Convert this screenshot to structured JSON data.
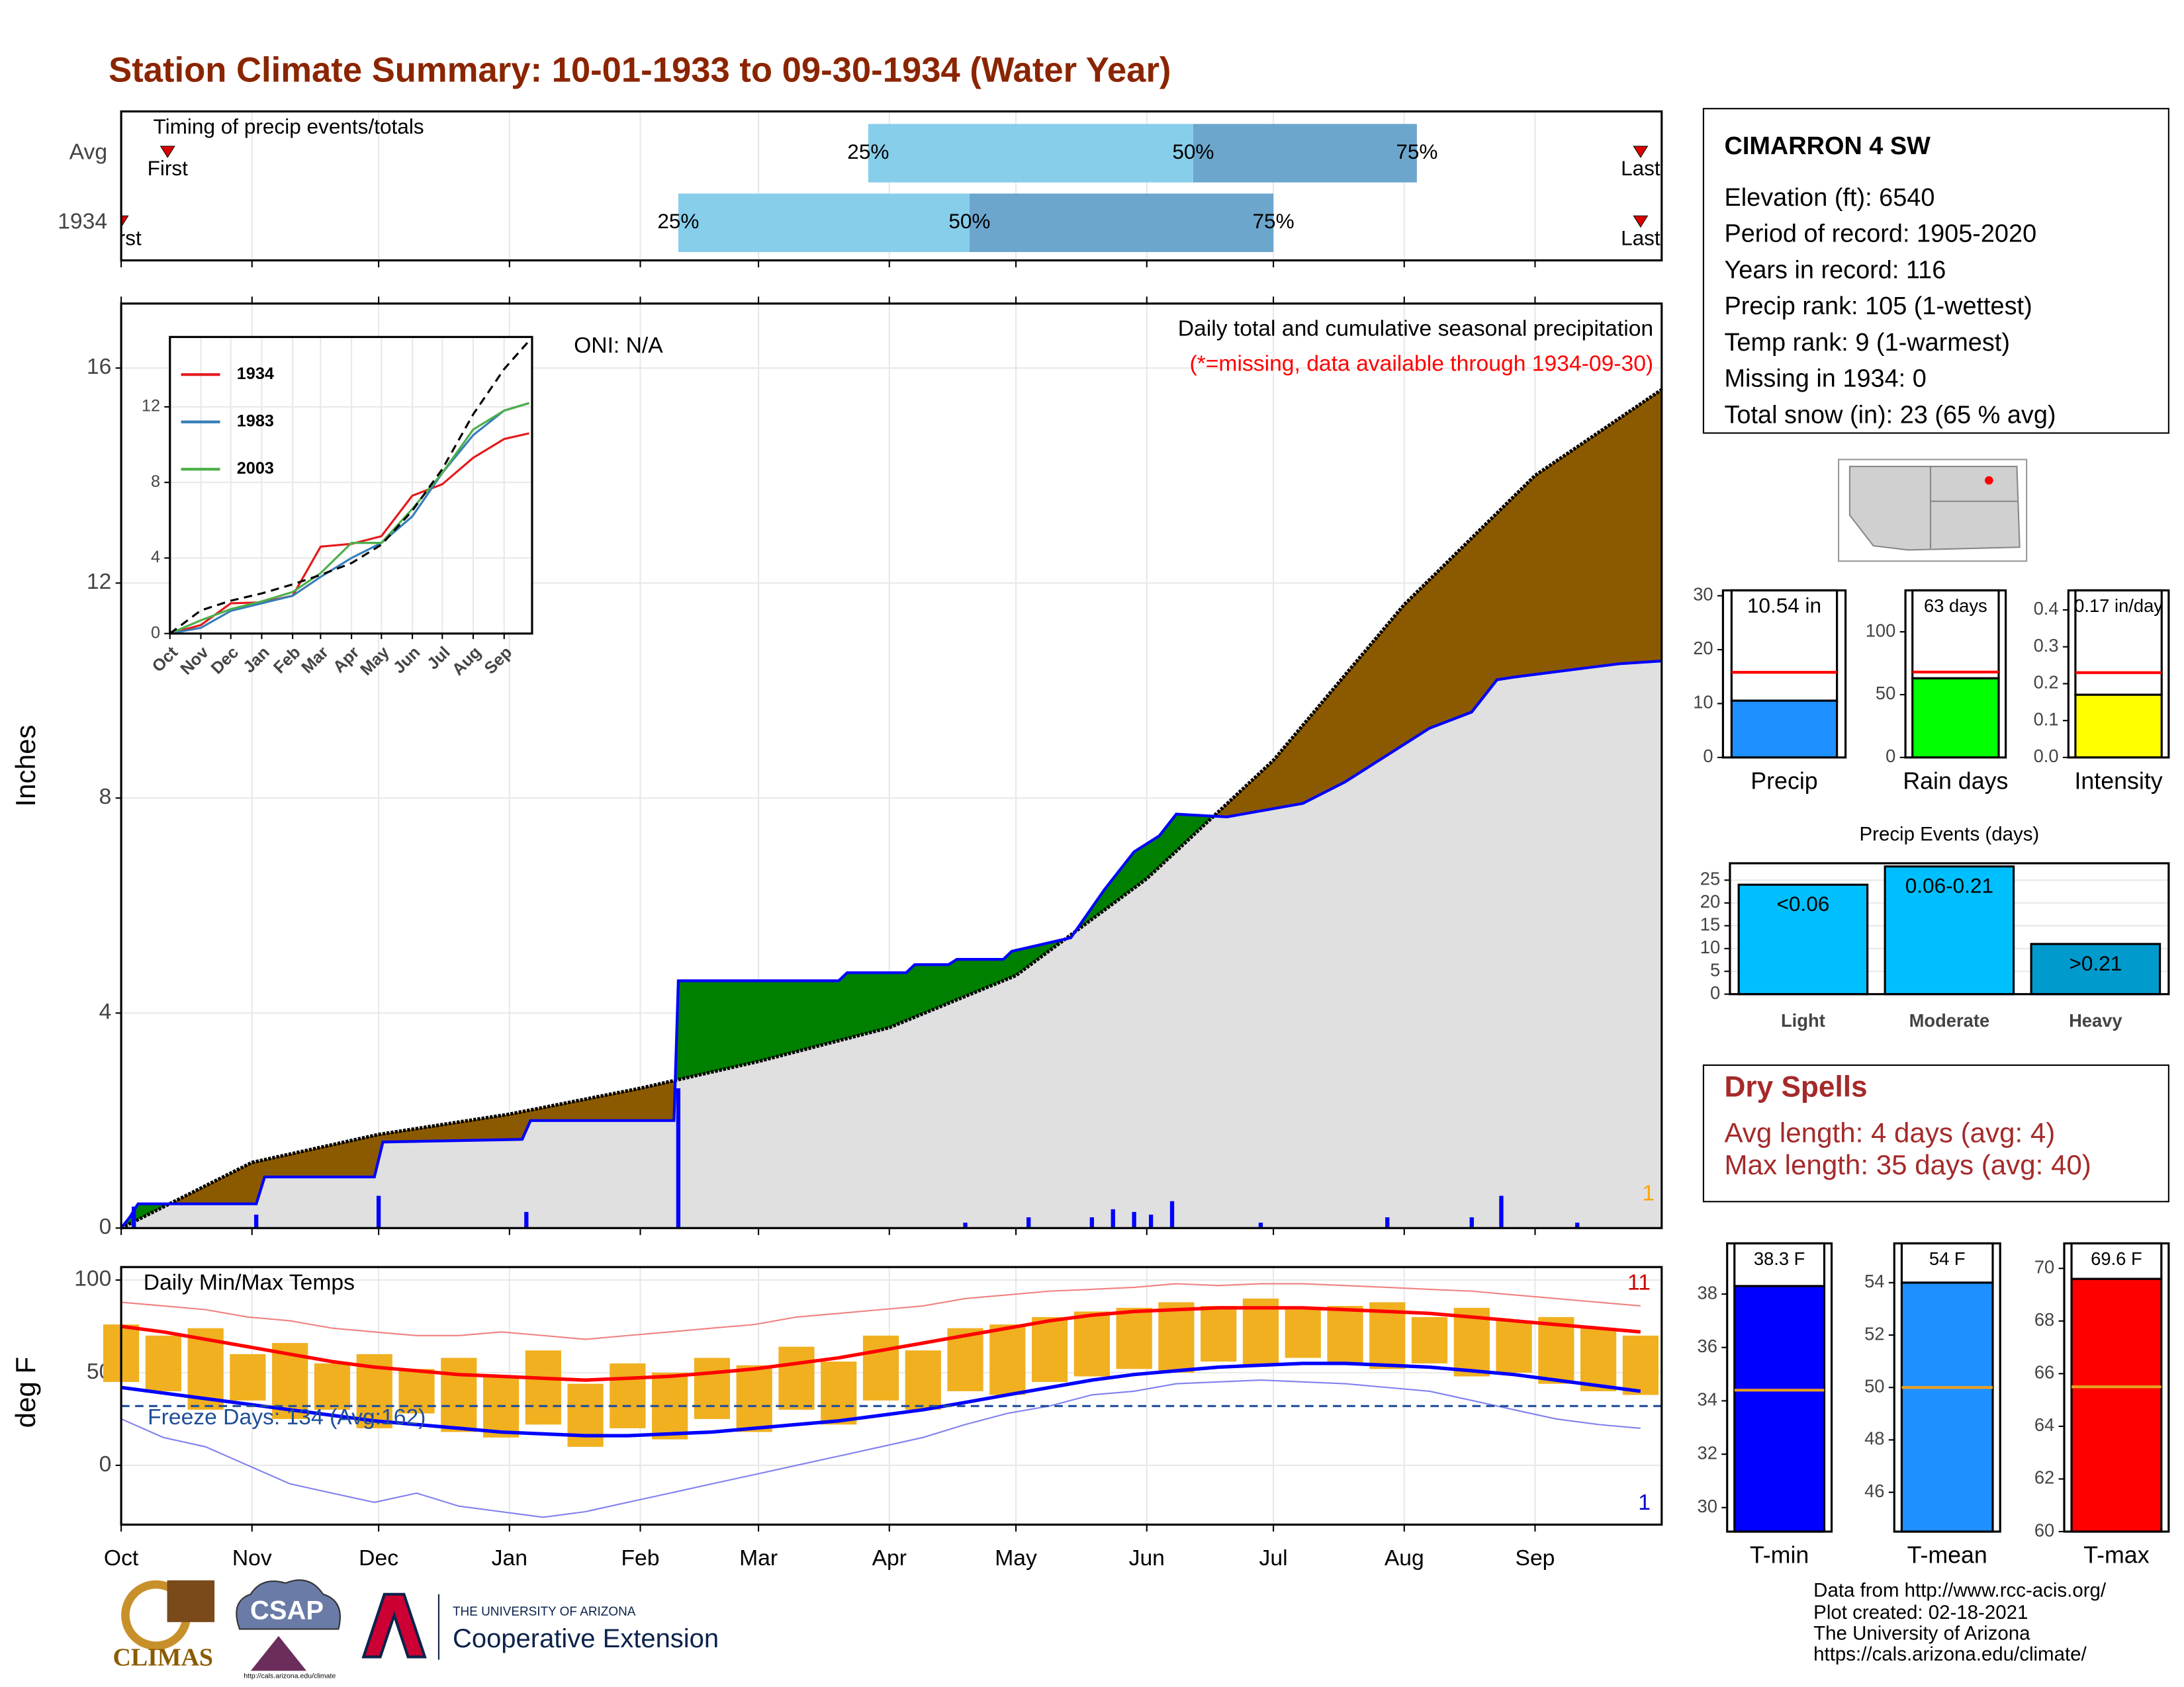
{
  "title": "Station Climate Summary: 10-01-1933 to 09-30-1934 (Water Year)",
  "station": {
    "name": "CIMARRON 4 SW",
    "lines": [
      "Elevation (ft): 6540",
      "Period of record: 1905-2020",
      "Years in record: 116",
      "Precip rank: 105 (1-wettest)",
      "Temp rank: 9 (1-warmest)",
      "Missing in 1934: 0",
      "Total snow (in): 23 (65 % avg)"
    ]
  },
  "dry_spells": {
    "title": "Dry Spells",
    "lines": [
      "Avg length: 4 days (avg: 4)",
      "Max length: 35 days (avg: 40)"
    ]
  },
  "footer": [
    "Data from http://www.rcc-acis.org/",
    "Plot created: 02-18-2021",
    "The University of Arizona",
    "https://cals.arizona.edu/climate/"
  ],
  "logos": {
    "climas": "CLIMAS",
    "csap": "CSAP",
    "csap_url": "http://cals.arizona.edu/climate",
    "university": "THE UNIVERSITY OF ARIZONA",
    "extension": "Cooperative Extension"
  },
  "chart_data": [
    {
      "type": "timeline",
      "title": "Timing of precip events/totals",
      "xlim": [
        0,
        365
      ],
      "xticks": [
        0,
        31,
        61,
        92,
        123,
        151,
        182,
        212,
        243,
        273,
        304,
        335
      ],
      "grid": true,
      "colors": [
        "#87ceeb",
        "#6ca6cd"
      ],
      "marker_color": "#dd0000",
      "rows": [
        {
          "name": "Avg",
          "first": 11,
          "last": 360,
          "first_label": "First",
          "last_label": "Last",
          "quartiles": [
            177,
            254,
            307
          ],
          "quartile_labels": [
            "25%",
            "50%",
            "75%"
          ]
        },
        {
          "name": "1934",
          "first": 0,
          "last": 360,
          "first_label": "First",
          "last_label": "Last",
          "quartiles": [
            132,
            201,
            273
          ],
          "quartile_labels": [
            "25%",
            "50%",
            "75%"
          ]
        }
      ]
    },
    {
      "type": "area",
      "title": "Daily total and cumulative seasonal precipitation",
      "subtitle": "(*=missing, data available through 1934-09-30)",
      "ylabel": "Inches",
      "annotation": "ONI: N/A",
      "corner_label": "1",
      "xlim": [
        0,
        365
      ],
      "xticks": [
        0,
        31,
        61,
        92,
        123,
        151,
        182,
        212,
        243,
        273,
        304,
        335
      ],
      "ylim": [
        0,
        17.2
      ],
      "yticks": [
        0,
        4,
        8,
        12,
        16
      ],
      "grid": true,
      "colors": {
        "above": "#008000",
        "below": "#8b5a00",
        "base": "#e0e0e0",
        "average_line": "#000000",
        "year_line": "#0000ff",
        "daily": "#0000ff",
        "corner": "#ffa500",
        "subtitle": "#ff0000"
      },
      "average": {
        "x": [
          0,
          31,
          61,
          92,
          123,
          151,
          182,
          212,
          243,
          273,
          304,
          335,
          365
        ],
        "values": [
          0,
          1.22,
          1.74,
          2.12,
          2.6,
          3.1,
          3.73,
          4.7,
          6.5,
          8.7,
          11.6,
          14.0,
          15.6
        ]
      },
      "year": {
        "x": [
          0,
          2,
          4,
          32,
          34,
          60,
          62,
          95,
          97,
          131,
          132,
          170,
          172,
          186,
          188,
          196,
          198,
          209,
          211,
          225,
          233,
          240,
          246,
          250,
          262,
          280,
          290,
          300,
          310,
          320,
          326,
          330,
          345,
          355,
          365
        ],
        "values": [
          0,
          0.2,
          0.45,
          0.45,
          0.95,
          0.95,
          1.6,
          1.65,
          2.0,
          2.0,
          4.6,
          4.6,
          4.75,
          4.75,
          4.9,
          4.9,
          5.0,
          5.0,
          5.15,
          5.4,
          6.3,
          7.0,
          7.3,
          7.7,
          7.65,
          7.9,
          8.3,
          8.8,
          9.3,
          9.6,
          10.2,
          10.25,
          10.4,
          10.5,
          10.55
        ]
      },
      "daily": {
        "x": [
          3,
          32,
          61,
          96,
          132,
          200,
          215,
          230,
          235,
          240,
          244,
          249,
          270,
          300,
          320,
          327,
          345
        ],
        "values": [
          0.4,
          0.25,
          0.6,
          0.3,
          2.6,
          0.1,
          0.2,
          0.2,
          0.35,
          0.3,
          0.25,
          0.5,
          0.1,
          0.2,
          0.2,
          0.6,
          0.1
        ]
      }
    },
    {
      "type": "line",
      "xlim": [
        0,
        363
      ],
      "ylim": [
        0,
        15.7
      ],
      "yticks": [
        0,
        4,
        8,
        12
      ],
      "xticks": [
        {
          "value": 0,
          "label": "Oct"
        },
        {
          "value": 31,
          "label": "Nov"
        },
        {
          "value": 61,
          "label": "Dec"
        },
        {
          "value": 92,
          "label": "Jan"
        },
        {
          "value": 123,
          "label": "Feb"
        },
        {
          "value": 151,
          "label": "Mar"
        },
        {
          "value": 182,
          "label": "Apr"
        },
        {
          "value": 212,
          "label": "May"
        },
        {
          "value": 243,
          "label": "Jun"
        },
        {
          "value": 273,
          "label": "Jul"
        },
        {
          "value": 304,
          "label": "Aug"
        },
        {
          "value": 335,
          "label": "Sep"
        }
      ],
      "grid": true,
      "x": [
        0,
        31,
        61,
        92,
        123,
        151,
        182,
        212,
        243,
        273,
        304,
        335,
        360
      ],
      "average": {
        "color": "#000000",
        "values": [
          0,
          1.22,
          1.74,
          2.12,
          2.6,
          3.1,
          3.73,
          4.7,
          6.5,
          8.7,
          11.6,
          14.0,
          15.5
        ]
      },
      "series": [
        {
          "name": "1934",
          "color": "#e41a1c",
          "values": [
            0,
            0.45,
            1.6,
            1.65,
            2.0,
            4.6,
            4.75,
            5.15,
            7.3,
            7.9,
            9.3,
            10.3,
            10.6
          ]
        },
        {
          "name": "1983",
          "color": "#377eb8",
          "values": [
            0,
            0.3,
            1.2,
            1.6,
            2.0,
            3.0,
            4.0,
            4.8,
            6.2,
            8.5,
            10.5,
            11.8,
            12.2
          ]
        },
        {
          "name": "2003",
          "color": "#4daf4a",
          "values": [
            0,
            0.7,
            1.3,
            1.7,
            2.2,
            3.2,
            4.8,
            4.8,
            6.6,
            8.5,
            10.8,
            11.8,
            12.2
          ]
        }
      ]
    },
    {
      "type": "bar",
      "categories": [
        "Precip"
      ],
      "values": [
        10.54
      ],
      "value_labels": [
        "10.54 in"
      ],
      "average": [
        15.8
      ],
      "ylim": [
        0,
        31
      ],
      "yticks": [
        0,
        10,
        20,
        30
      ],
      "color": "#1e90ff",
      "average_color": "#ff0000"
    },
    {
      "type": "bar",
      "categories": [
        "Rain days"
      ],
      "values": [
        63
      ],
      "value_labels": [
        "63 days"
      ],
      "average": [
        68
      ],
      "ylim": [
        0,
        133
      ],
      "yticks": [
        0,
        50,
        100
      ],
      "color": "#00ff00",
      "average_color": "#ff0000"
    },
    {
      "type": "bar",
      "categories": [
        "Intensity"
      ],
      "values": [
        0.17
      ],
      "value_labels": [
        "0.17 in/day"
      ],
      "average": [
        0.23
      ],
      "ylim": [
        0,
        0.453
      ],
      "yticks": [
        {
          "value": 0,
          "label": "0.0"
        },
        0.1,
        0.2,
        0.3,
        0.4
      ],
      "color": "#ffff00",
      "average_color": "#ff0000"
    },
    {
      "type": "events",
      "title": "Precip Events (days)",
      "categories": [
        "Light",
        "Moderate",
        "Heavy"
      ],
      "bin_labels": [
        "<0.06",
        "0.06-0.21",
        ">0.21"
      ],
      "values": [
        24,
        28,
        11
      ],
      "ylim": [
        0,
        28.7
      ],
      "yticks": [
        0,
        5,
        10,
        15,
        20,
        25
      ],
      "grid": true,
      "colors": [
        "#00bfff",
        "#00bfff",
        "#009acd"
      ]
    },
    {
      "type": "range",
      "title": "Daily Min/Max Temps",
      "ylabel": "deg F",
      "annotation": "Freeze Days: 134 (Avg:162)",
      "record_high_count": "11",
      "record_low_count": "1",
      "freeze_line": 32,
      "xlim": [
        0,
        365
      ],
      "ylim": [
        -32,
        107
      ],
      "yticks": [
        0,
        50,
        100
      ],
      "grid": true,
      "xticks": [
        {
          "value": 0,
          "label": "Oct"
        },
        {
          "value": 31,
          "label": "Nov"
        },
        {
          "value": 61,
          "label": "Dec"
        },
        {
          "value": 92,
          "label": "Jan"
        },
        {
          "value": 123,
          "label": "Feb"
        },
        {
          "value": 151,
          "label": "Mar"
        },
        {
          "value": 182,
          "label": "Apr"
        },
        {
          "value": 212,
          "label": "May"
        },
        {
          "value": 243,
          "label": "Jun"
        },
        {
          "value": 273,
          "label": "Jul"
        },
        {
          "value": 304,
          "label": "Aug"
        },
        {
          "value": 335,
          "label": "Sep"
        }
      ],
      "colors": {
        "daily": "#f0b020",
        "avg_high": "#ff0000",
        "avg_low": "#0000ff",
        "record_high": "#f08080",
        "record_low": "#8080f0",
        "freeze": "#1f4e99"
      },
      "x": [
        0,
        10,
        20,
        30,
        40,
        50,
        60,
        70,
        80,
        90,
        100,
        110,
        120,
        130,
        140,
        150,
        160,
        170,
        180,
        190,
        200,
        210,
        220,
        230,
        240,
        250,
        260,
        270,
        280,
        290,
        300,
        310,
        320,
        330,
        340,
        350,
        360
      ],
      "daily_high": [
        76,
        70,
        74,
        60,
        66,
        55,
        60,
        52,
        58,
        48,
        62,
        44,
        55,
        50,
        58,
        54,
        64,
        56,
        70,
        62,
        74,
        76,
        80,
        83,
        85,
        88,
        86,
        90,
        84,
        86,
        88,
        80,
        85,
        78,
        80,
        74,
        70
      ],
      "daily_low": [
        45,
        40,
        30,
        35,
        25,
        30,
        20,
        28,
        18,
        15,
        22,
        10,
        20,
        14,
        25,
        18,
        30,
        22,
        35,
        30,
        40,
        38,
        45,
        48,
        52,
        50,
        56,
        54,
        58,
        55,
        52,
        55,
        48,
        50,
        44,
        40,
        38
      ],
      "avg_high": [
        75,
        72,
        68,
        64,
        60,
        56,
        53,
        51,
        49,
        48,
        47,
        46,
        47,
        48,
        50,
        52,
        55,
        58,
        62,
        66,
        70,
        74,
        78,
        81,
        83,
        84,
        85,
        85,
        85,
        84,
        83,
        82,
        80,
        78,
        76,
        74,
        72
      ],
      "avg_low": [
        42,
        39,
        36,
        33,
        30,
        27,
        24,
        22,
        20,
        18,
        17,
        16,
        16,
        17,
        18,
        20,
        22,
        24,
        27,
        30,
        34,
        38,
        42,
        46,
        49,
        51,
        53,
        54,
        55,
        55,
        54,
        53,
        51,
        49,
        46,
        43,
        40
      ],
      "record_high": [
        88,
        86,
        84,
        80,
        78,
        74,
        72,
        70,
        70,
        72,
        70,
        68,
        70,
        72,
        74,
        76,
        80,
        82,
        84,
        86,
        90,
        92,
        94,
        95,
        96,
        98,
        97,
        98,
        98,
        97,
        96,
        95,
        94,
        92,
        90,
        88,
        86
      ],
      "record_low": [
        25,
        15,
        10,
        0,
        -10,
        -15,
        -20,
        -15,
        -22,
        -25,
        -28,
        -25,
        -20,
        -15,
        -10,
        -5,
        0,
        5,
        10,
        15,
        22,
        28,
        32,
        38,
        40,
        44,
        45,
        46,
        45,
        44,
        42,
        40,
        35,
        30,
        25,
        22,
        20
      ]
    },
    {
      "type": "bar",
      "categories": [
        "T-min"
      ],
      "values": [
        38.3
      ],
      "value_labels": [
        "38.3 F"
      ],
      "average": [
        34.4
      ],
      "ylim": [
        29.1,
        39.9
      ],
      "yticks": [
        30,
        32,
        34,
        36,
        38
      ],
      "color": "#0000ff",
      "average_color": "#e8a020"
    },
    {
      "type": "bar",
      "categories": [
        "T-mean"
      ],
      "values": [
        54
      ],
      "value_labels": [
        "54 F"
      ],
      "average": [
        50
      ],
      "ylim": [
        44.5,
        55.5
      ],
      "yticks": [
        46,
        48,
        50,
        52,
        54
      ],
      "color": "#1e90ff",
      "average_color": "#e8a020"
    },
    {
      "type": "bar",
      "categories": [
        "T-max"
      ],
      "values": [
        69.6
      ],
      "value_labels": [
        "69.6 F"
      ],
      "average": [
        65.5
      ],
      "ylim": [
        60,
        70.95
      ],
      "yticks": [
        60,
        62,
        64,
        66,
        68,
        70
      ],
      "color": "#ff0000",
      "average_color": "#e8a020"
    }
  ]
}
